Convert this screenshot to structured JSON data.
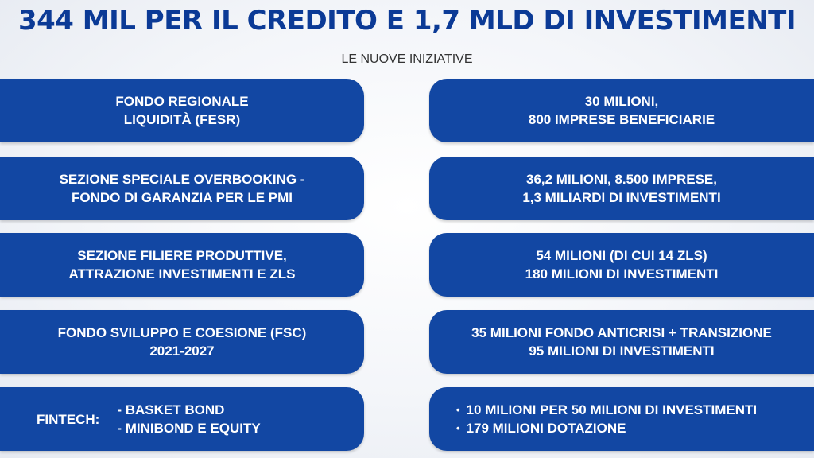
{
  "header": {
    "title": "344 MIL PER IL CREDITO E 1,7 MLD DI INVESTIMENTI",
    "subtitle": "LE NUOVE INIZIATIVE"
  },
  "rows": [
    {
      "left": [
        "FONDO REGIONALE",
        "LIQUIDITÀ (FESR)"
      ],
      "right": [
        "30 MILIONI,",
        "800 IMPRESE BENEFICIARIE"
      ]
    },
    {
      "left": [
        "SEZIONE SPECIALE OVERBOOKING -",
        "FONDO DI GARANZIA PER LE PMI"
      ],
      "right": [
        "36,2 MILIONI, 8.500 IMPRESE,",
        "1,3 MILIARDI DI INVESTIMENTI"
      ]
    },
    {
      "left": [
        "SEZIONE FILIERE PRODUTTIVE,",
        "ATTRAZIONE INVESTIMENTI E ZLS"
      ],
      "right": [
        "54 MILIONI (DI CUI 14 ZLS)",
        "180 MILIONI DI INVESTIMENTI"
      ]
    },
    {
      "left": [
        "FONDO SVILUPPO E COESIONE (FSC)",
        "2021-2027"
      ],
      "right": [
        "35 MILIONI FONDO ANTICRISI + TRANSIZIONE",
        "95 MILIONI DI INVESTIMENTI"
      ]
    }
  ],
  "fintech": {
    "label": "FINTECH:",
    "items": [
      "- BASKET BOND",
      "- MINIBOND E EQUITY"
    ],
    "bullet": "•",
    "right": [
      "10 MILIONI PER 50 MILIONI DI INVESTIMENTI",
      "179 MILIONI DOTAZIONE"
    ]
  },
  "colors": {
    "pill": "#1247a3",
    "title": "#0b3a96"
  }
}
